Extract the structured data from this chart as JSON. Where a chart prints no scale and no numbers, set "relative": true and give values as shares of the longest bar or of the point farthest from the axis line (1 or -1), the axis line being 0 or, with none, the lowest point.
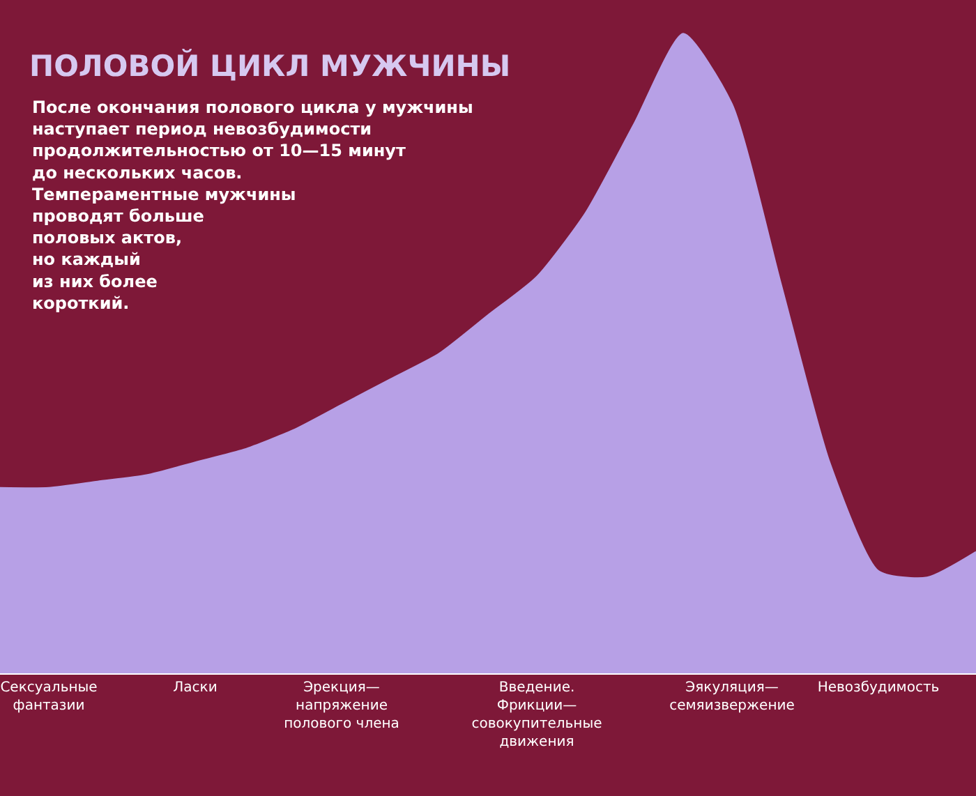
{
  "chart_data": {
    "type": "area",
    "relative": true,
    "title": "ПОЛОВОЙ ЦИКЛ МУЖЧИНЫ",
    "categories": [
      null,
      "Сексуальные\nфантазии",
      null,
      null,
      "Ласки",
      null,
      null,
      "Эрекция—\nнапряжение\nполового члена",
      null,
      null,
      null,
      "Введение.\nФрикции—\nсовокупительные\nдвижения",
      null,
      null,
      null,
      "Эякуляция—\nсемяизвержение",
      null,
      null,
      "Невозбудимость",
      null,
      null
    ],
    "values": [
      0.29,
      0.29,
      0.3,
      0.31,
      0.33,
      0.35,
      0.38,
      0.42,
      0.46,
      0.5,
      0.56,
      0.62,
      0.72,
      0.86,
      1.0,
      0.89,
      0.61,
      0.33,
      0.16,
      0.15,
      0.19
    ],
    "color": "#b7a0e6",
    "annotations": [
      "После окончания полового цикла у мужчины\nнаступает период невозбудимости\nпродолжительностью от 10—15 минут\nдо нескольких часов.\nТемпераментные мужчины\nпроводят больше\nполовых актов,\nно каждый\nиз них более\nкороткий."
    ],
    "legend": false
  }
}
